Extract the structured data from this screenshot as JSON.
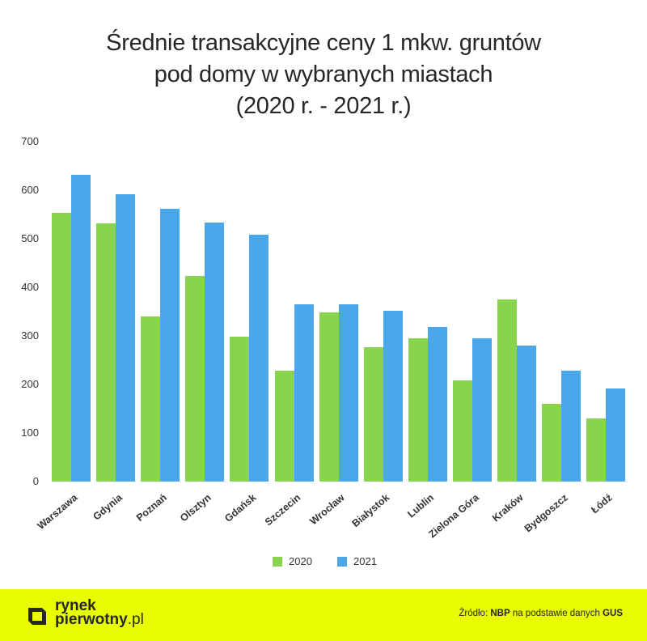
{
  "title_lines": [
    "Średnie transakcyjne ceny 1 mkw. gruntów",
    "pod domy w wybranych miastach",
    "(2020 r. - 2021 r.)"
  ],
  "colors": {
    "series_2020": "#88d44f",
    "series_2021": "#4aa8ea",
    "footer_bg": "#e8fd00",
    "text": "#26262b"
  },
  "legend": [
    {
      "label": "2020",
      "color": "#88d44f"
    },
    {
      "label": "2021",
      "color": "#4aa8ea"
    }
  ],
  "footer": {
    "logo_line1": "rynek",
    "logo_line2": "pierwotny",
    "logo_suffix": ".pl",
    "source_prefix": "Źródło: ",
    "source_bold1": "NBP",
    "source_middle": " na podstawie danych ",
    "source_bold2": "GUS"
  },
  "chart_data": {
    "type": "bar",
    "title": "Średnie transakcyjne ceny 1 mkw. gruntów pod domy w wybranych miastach (2020 r. - 2021 r.)",
    "xlabel": "",
    "ylabel": "",
    "ylim": [
      0,
      700
    ],
    "yticks": [
      0,
      100,
      200,
      300,
      400,
      500,
      600,
      700
    ],
    "grid": false,
    "legend_position": "bottom",
    "categories": [
      "Warszawa",
      "Gdynia",
      "Poznań",
      "Olsztyn",
      "Gdańsk",
      "Szczecin",
      "Wrocław",
      "Białystok",
      "Lublin",
      "Zielona Góra",
      "Kraków",
      "Bydgoszcz",
      "Łódź"
    ],
    "series": [
      {
        "name": "2020",
        "color": "#88d44f",
        "values": [
          553,
          532,
          340,
          423,
          298,
          228,
          348,
          277,
          295,
          208,
          375,
          160,
          130
        ]
      },
      {
        "name": "2021",
        "color": "#4aa8ea",
        "values": [
          632,
          592,
          562,
          533,
          508,
          365,
          365,
          352,
          318,
          295,
          280,
          228,
          192
        ]
      }
    ]
  }
}
